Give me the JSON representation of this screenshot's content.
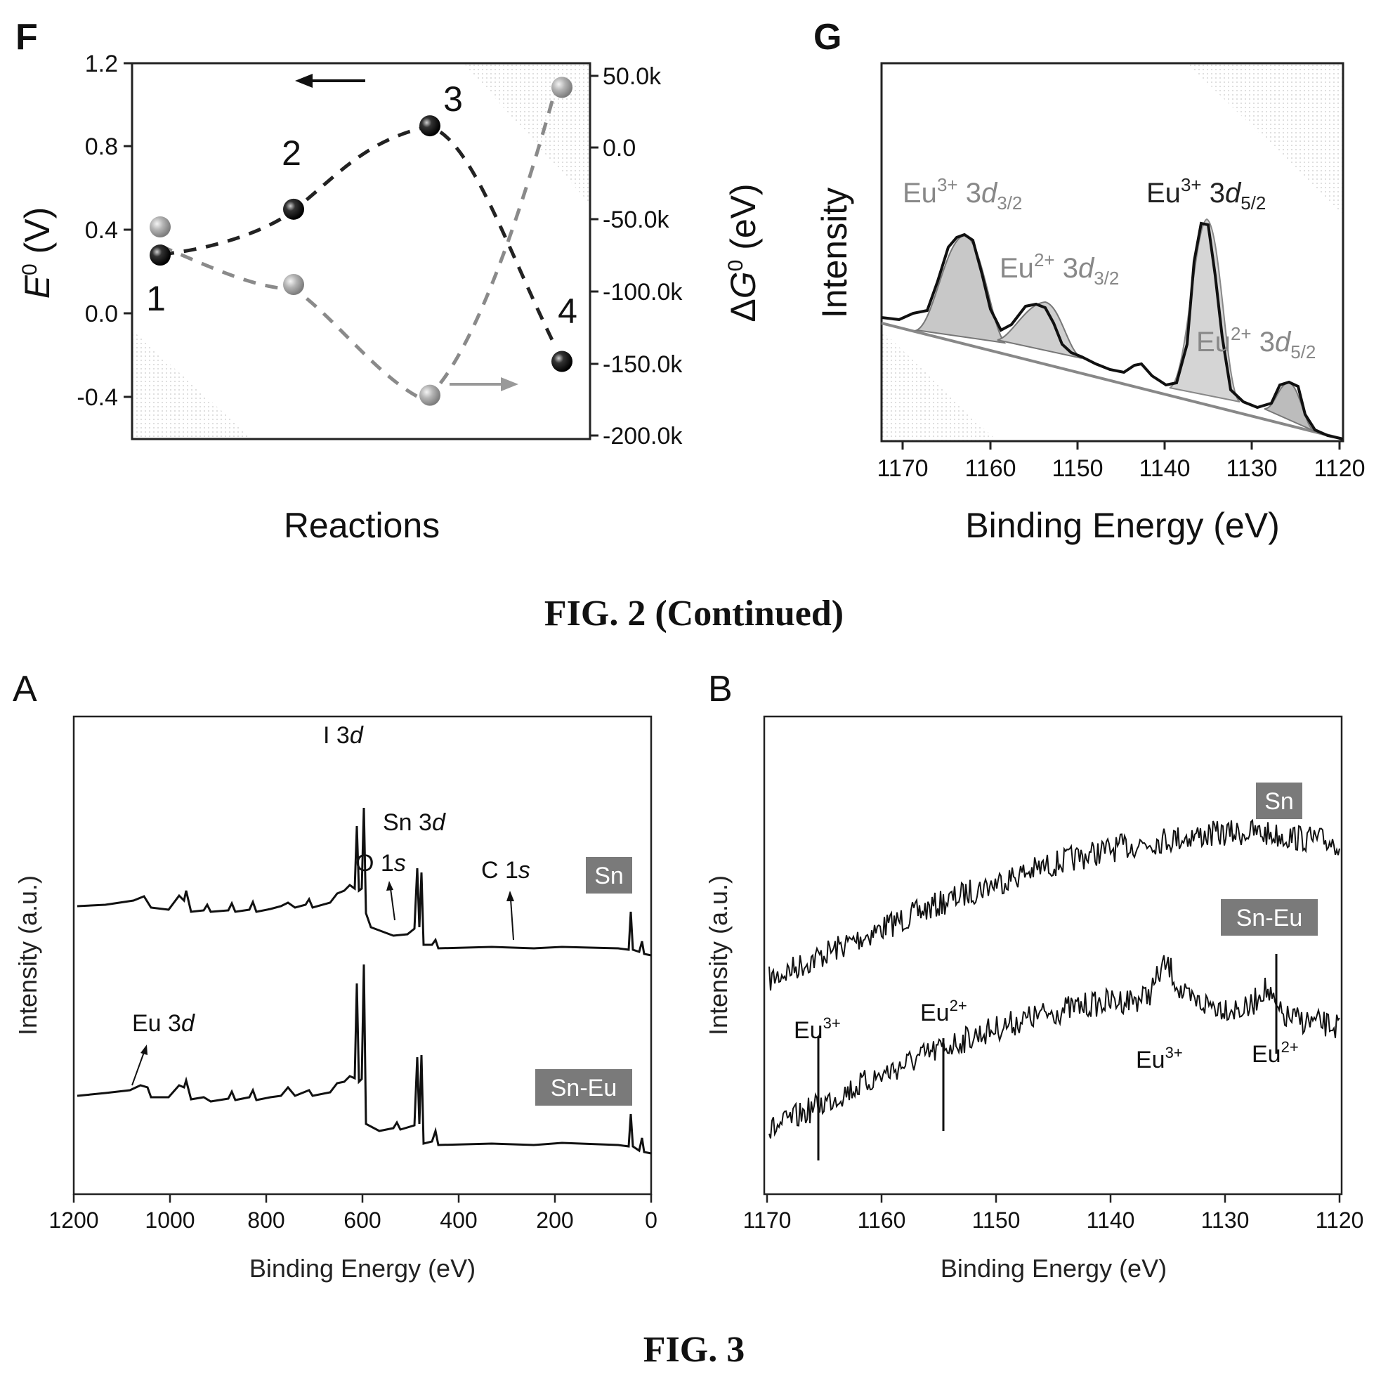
{
  "captions": {
    "fig2": "FIG. 2 (Continued)",
    "fig3": "FIG. 3"
  },
  "chart_data": [
    {
      "panel": "F",
      "type": "scatter",
      "xlabel": "Reactions",
      "ylabel": "E0 (V)",
      "ylabel2": "ΔG0 (eV)",
      "ylim": [
        -0.6,
        1.2
      ],
      "y2lim": [
        -200000,
        60000
      ],
      "yticks": [
        "1.2",
        "0.8",
        "0.4",
        "0.0",
        "-0.4"
      ],
      "y2ticks": [
        "50.0k",
        "0.0",
        "-50.0k",
        "-100.0k",
        "-150.0k",
        "-200.0k"
      ],
      "series": [
        {
          "axis": "left",
          "color": "#111111",
          "points": [
            {
              "x": 1,
              "y": 0.28,
              "label": "1"
            },
            {
              "x": 2,
              "y": 0.5,
              "label": "2"
            },
            {
              "x": 3,
              "y": 0.9,
              "label": "3"
            },
            {
              "x": 4,
              "y": -0.23,
              "label": "4"
            }
          ]
        },
        {
          "axis": "right",
          "color": "#9a9a9a",
          "points": [
            {
              "x": 1,
              "y": -55000
            },
            {
              "x": 2,
              "y": -95000
            },
            {
              "x": 3,
              "y": -172000
            },
            {
              "x": 4,
              "y": 42000
            }
          ]
        }
      ],
      "grid": false
    },
    {
      "panel": "G",
      "type": "line",
      "xlabel": "Binding Energy (eV)",
      "ylabel": "Intensity",
      "xlim": [
        1175,
        1120
      ],
      "xticks": [
        "1170",
        "1160",
        "1150",
        "1140",
        "1130",
        "1120"
      ],
      "peaks": [
        {
          "label": "Eu3+ 3d3/2",
          "center": 1165,
          "height": 0.9
        },
        {
          "label": "Eu2+ 3d3/2",
          "center": 1155.5,
          "height": 0.45
        },
        {
          "label": "Eu3+ 3d5/2",
          "center": 1135.5,
          "height": 1.0
        },
        {
          "label": "Eu2+ 3d5/2",
          "center": 1125.5,
          "height": 0.25
        }
      ]
    },
    {
      "panel": "A",
      "type": "line",
      "xlabel": "Binding Energy (eV)",
      "ylabel": "Intensity (a.u.)",
      "xlim": [
        1200,
        0
      ],
      "xticks": [
        "1200",
        "1000",
        "800",
        "600",
        "400",
        "200",
        "0"
      ],
      "series": [
        {
          "name": "Sn"
        },
        {
          "name": "Sn-Eu"
        }
      ],
      "annotations": [
        "I 3d",
        "Sn 3d",
        "O 1s",
        "C 1s",
        "Eu 3d"
      ]
    },
    {
      "panel": "B",
      "type": "line",
      "xlabel": "Binding Energy (eV)",
      "ylabel": "Intensity (a.u.)",
      "xlim": [
        1170,
        1120
      ],
      "xticks": [
        "1170",
        "1160",
        "1150",
        "1140",
        "1130",
        "1120"
      ],
      "series": [
        {
          "name": "Sn"
        },
        {
          "name": "Sn-Eu"
        }
      ],
      "annotations": [
        {
          "label": "Eu3+",
          "x": 1165
        },
        {
          "label": "Eu2+",
          "x": 1154.5
        },
        {
          "label": "Eu3+",
          "x": 1135.5
        },
        {
          "label": "Eu2+",
          "x": 1125.5
        }
      ]
    }
  ],
  "panelF": {
    "letter": "F",
    "xlabel": "Reactions",
    "yticks": [
      "1.2",
      "0.8",
      "0.4",
      "0.0",
      "-0.4"
    ],
    "y2ticks": [
      "50.0k",
      "0.0",
      "-50.0k",
      "-100.0k",
      "-150.0k",
      "-200.0k"
    ],
    "point_labels": [
      "1",
      "2",
      "3",
      "4"
    ]
  },
  "panelG": {
    "letter": "G",
    "ylabel": "Intensity",
    "xlabel": "Binding Energy (eV)",
    "xticks": [
      "1170",
      "1160",
      "1150",
      "1140",
      "1130",
      "1120"
    ]
  },
  "panelA": {
    "letter": "A",
    "ylabel": "Intensity (a.u.)",
    "xlabel": "Binding Energy (eV)",
    "xticks": [
      "1200",
      "1000",
      "800",
      "600",
      "400",
      "200",
      "0"
    ],
    "badge_sn": "Sn",
    "badge_sneu": "Sn-Eu",
    "c1s": "C 1",
    "eu3d": "Eu 3"
  },
  "panelB": {
    "letter": "B",
    "ylabel": "Intensity (a.u.)",
    "xlabel": "Binding Energy (eV)",
    "xticks": [
      "1170",
      "1160",
      "1150",
      "1140",
      "1130",
      "1120"
    ],
    "badge_sn": "Sn",
    "badge_sneu": "Sn-Eu",
    "eu3": "Eu",
    "sup3": "3+",
    "sup2": "2+"
  }
}
